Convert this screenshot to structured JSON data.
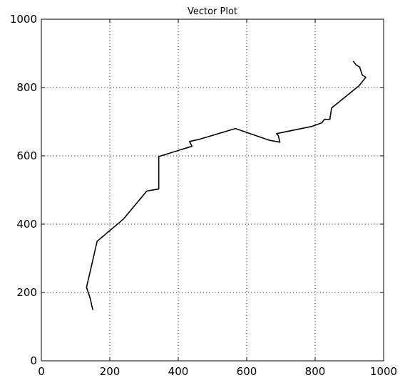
{
  "chart_data": {
    "type": "line",
    "title": "Vector Plot",
    "xlabel": "",
    "ylabel": "",
    "xlim": [
      0,
      1000
    ],
    "ylim": [
      0,
      1000
    ],
    "xticks": [
      0,
      200,
      400,
      600,
      800,
      1000
    ],
    "yticks": [
      0,
      200,
      400,
      600,
      800,
      1000
    ],
    "grid": true,
    "series": [
      {
        "x": [
          150,
          143,
          132,
          140,
          163,
          240,
          308,
          343,
          343,
          440,
          433,
          460,
          567,
          665,
          697,
          692,
          687,
          790,
          820,
          827,
          843,
          848,
          928,
          948,
          938,
          930,
          920,
          912
        ],
        "y": [
          150,
          182,
          215,
          250,
          350,
          415,
          497,
          503,
          598,
          628,
          642,
          648,
          680,
          646,
          640,
          660,
          665,
          686,
          697,
          707,
          707,
          740,
          805,
          830,
          836,
          860,
          866,
          876
        ],
        "color": "#000000"
      }
    ]
  }
}
